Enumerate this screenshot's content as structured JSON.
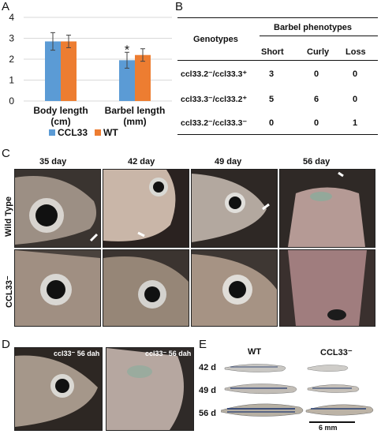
{
  "panels": {
    "a": "A",
    "b": "B",
    "c": "C",
    "d": "D",
    "e": "E"
  },
  "chart_data": {
    "type": "bar",
    "categories": [
      "Body length (cm)",
      "Barbel length (mm)"
    ],
    "category_lines": [
      [
        "Body length",
        "(cm)"
      ],
      [
        "Barbel length",
        "(mm)"
      ]
    ],
    "series": [
      {
        "name": "CCL33",
        "color": "#5b9bd5",
        "values": [
          2.85,
          1.95
        ],
        "errors": [
          0.42,
          0.38
        ]
      },
      {
        "name": "WT",
        "color": "#ed7d31",
        "values": [
          2.85,
          2.2
        ],
        "errors": [
          0.3,
          0.3
        ]
      }
    ],
    "ylim": [
      0,
      4
    ],
    "yticks": [
      "0",
      "1",
      "2",
      "3",
      "4"
    ],
    "annotation": "*",
    "legend_position": "bottom"
  },
  "table_b": {
    "col_genotypes": "Genotypes",
    "col_group": "Barbel phenotypes",
    "cols": [
      "Short",
      "Curly",
      "Loss"
    ],
    "rows": [
      {
        "geno": "ccl33.2⁻/ccl33.3⁺",
        "vals": [
          "3",
          "0",
          "0"
        ]
      },
      {
        "geno": "ccl33.3⁻/ccl33.2⁺",
        "vals": [
          "5",
          "6",
          "0"
        ]
      },
      {
        "geno": "ccl33.2⁻/ccl33.3⁻",
        "vals": [
          "0",
          "0",
          "1"
        ]
      }
    ]
  },
  "panel_c": {
    "days": [
      "35 day",
      "42 day",
      "49 day",
      "56 day"
    ],
    "rows": [
      "Wild Type",
      "CCL33⁻"
    ]
  },
  "panel_d": {
    "insets": [
      "ccl33⁻ 56 dah",
      "ccl33⁻ 56 dah"
    ]
  },
  "panel_e": {
    "cols": [
      "WT",
      "CCL33⁻"
    ],
    "rows": [
      "42 d",
      "49 d",
      "56 d"
    ],
    "scale": "6 mm"
  }
}
